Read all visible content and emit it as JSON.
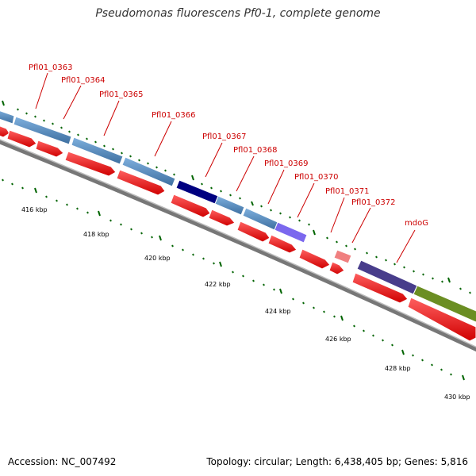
{
  "title": "Pseudomonas fluorescens Pf0-1, complete genome",
  "accession": "Accession: NC_007492",
  "topology": "Topology: circular; Length: 6,438,405 bp; Genes: 5,816",
  "gene_labels": [
    "Pfl01_0363",
    "Pfl01_0364",
    "Pfl01_0365",
    "Pfl01_0366",
    "Pfl01_0367",
    "Pfl01_0368",
    "Pfl01_0369",
    "Pfl01_0370",
    "Pfl01_0371",
    "Pfl01_0372",
    "mdoG"
  ],
  "kbp_labels": [
    "416 kbp",
    "418 kbp",
    "420 kbp",
    "422 kbp",
    "424 kbp",
    "426 kbp",
    "428 kbp",
    "430 kbp"
  ],
  "colors": {
    "label": "#cc0000",
    "forward_gene": "#ff0000",
    "cds_blue": "#4682b4",
    "cds_navy": "#000080",
    "cds_purple": "#7b68ee",
    "cds_pink": "#f08080",
    "cds_slate": "#483d8b",
    "cds_olive": "#6b8e23",
    "tick": "#006400",
    "backbone": "#808080"
  }
}
